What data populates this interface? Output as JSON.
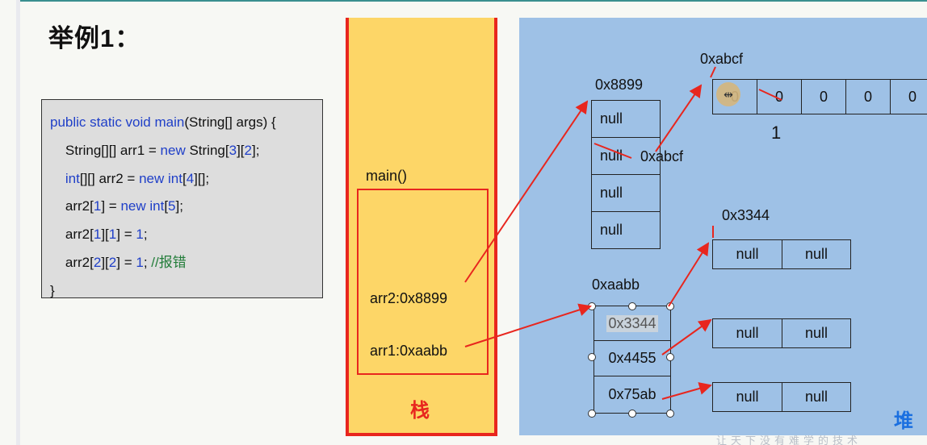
{
  "title": "举例1：",
  "code": {
    "lines": [
      [
        {
          "t": "public static void ",
          "k": "kw"
        },
        {
          "t": "main",
          "k": "kw"
        },
        {
          "t": "(String[] args) {",
          "k": ""
        }
      ],
      [
        {
          "t": "    String[][] arr1 = ",
          "k": ""
        },
        {
          "t": "new ",
          "k": "kw"
        },
        {
          "t": "String[",
          "k": ""
        },
        {
          "t": "3",
          "k": "kw"
        },
        {
          "t": "][",
          "k": ""
        },
        {
          "t": "2",
          "k": "kw"
        },
        {
          "t": "];",
          "k": ""
        }
      ],
      [
        {
          "t": "    int",
          "k": "kw"
        },
        {
          "t": "[][] arr2 = ",
          "k": ""
        },
        {
          "t": "new int",
          "k": "kw"
        },
        {
          "t": "[",
          "k": ""
        },
        {
          "t": "4",
          "k": "kw"
        },
        {
          "t": "][];",
          "k": ""
        }
      ],
      [
        {
          "t": "    arr2[",
          "k": ""
        },
        {
          "t": "1",
          "k": "kw"
        },
        {
          "t": "] = ",
          "k": ""
        },
        {
          "t": "new int",
          "k": "kw"
        },
        {
          "t": "[",
          "k": ""
        },
        {
          "t": "5",
          "k": "kw"
        },
        {
          "t": "];",
          "k": ""
        }
      ],
      [
        {
          "t": "    arr2[",
          "k": ""
        },
        {
          "t": "1",
          "k": "kw"
        },
        {
          "t": "][",
          "k": ""
        },
        {
          "t": "1",
          "k": "kw"
        },
        {
          "t": "] = ",
          "k": ""
        },
        {
          "t": "1",
          "k": "kw"
        },
        {
          "t": ";",
          "k": ""
        }
      ],
      [
        {
          "t": "    arr2[",
          "k": ""
        },
        {
          "t": "2",
          "k": "kw"
        },
        {
          "t": "][",
          "k": ""
        },
        {
          "t": "2",
          "k": "kw"
        },
        {
          "t": "] = ",
          "k": ""
        },
        {
          "t": "1",
          "k": "kw"
        },
        {
          "t": "; ",
          "k": ""
        },
        {
          "t": "//报错",
          "k": "cmt"
        }
      ],
      [
        {
          "t": "}",
          "k": ""
        }
      ]
    ]
  },
  "stack": {
    "label": "栈",
    "frame_label": "main()",
    "vars": [
      "arr2:0x8899",
      "arr1:0xaabb"
    ]
  },
  "heap": {
    "label": "堆",
    "arr2_addr": "0x8899",
    "arr2_cells": [
      "null",
      "null",
      "null",
      "null"
    ],
    "arr2_cell1_new": "0xabcf",
    "row5_addr": "0xabcf",
    "row5_cells": [
      "0",
      "0",
      "0",
      "0",
      "0"
    ],
    "row5_changed_value": "1",
    "arr1_addr": "0xaabb",
    "arr1_cells": [
      "0x3344",
      "0x4455",
      "0x75ab"
    ],
    "row_3344_addr": "0x3344",
    "sub_cells": [
      "null",
      "null"
    ]
  },
  "watermark": "让天下没有难学的技术",
  "colors": {
    "stack_bg": "#fdd667",
    "heap_bg": "#9ec1e6",
    "arrow": "#e8261e",
    "code_keyword": "#1f3fc8",
    "code_comment": "#237d3a"
  }
}
